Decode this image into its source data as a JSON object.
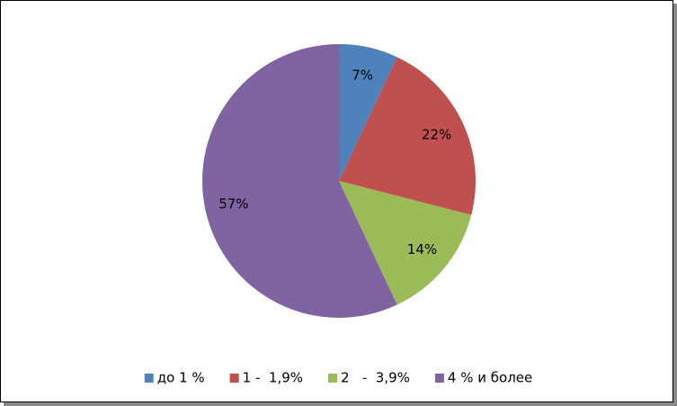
{
  "chart_data": {
    "type": "pie",
    "categories": [
      "до 1 %",
      "1 -  1,9%",
      "2   -  3,9%",
      "4 % и более"
    ],
    "values": [
      7,
      22,
      14,
      57
    ],
    "value_labels": [
      "7%",
      "22%",
      "14%",
      "57%"
    ],
    "colors": [
      "#4f81bd",
      "#c0504d",
      "#9bbb59",
      "#8064a2"
    ],
    "legend": "bottom"
  }
}
